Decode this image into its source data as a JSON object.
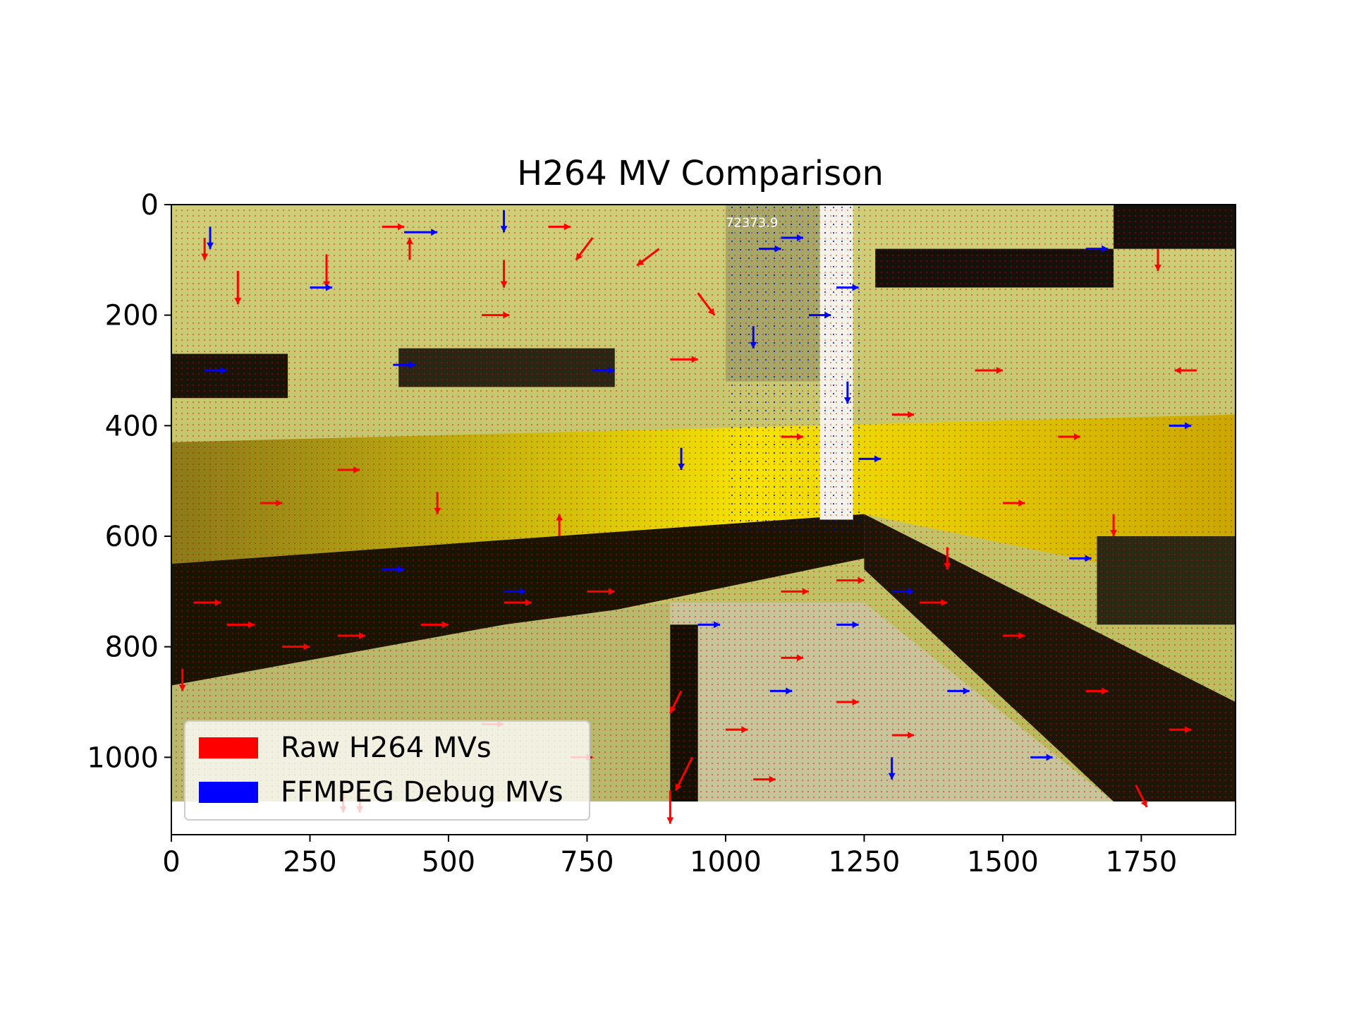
{
  "chart_data": {
    "type": "quiver",
    "title": "H264 MV Comparison",
    "xlabel": "",
    "ylabel": "",
    "xlim": [
      0,
      1920
    ],
    "ylim": [
      1140,
      0
    ],
    "y_inverted": true,
    "x_ticks": [
      0,
      250,
      500,
      750,
      1000,
      1250,
      1500,
      1750
    ],
    "x_tick_labels": [
      "0",
      "250",
      "500",
      "750",
      "1000",
      "1250",
      "1500",
      "1750"
    ],
    "y_ticks": [
      0,
      200,
      400,
      600,
      800,
      1000
    ],
    "y_tick_labels": [
      "0",
      "200",
      "400",
      "600",
      "800",
      "1000"
    ],
    "background_image": {
      "description_type": "video-frame",
      "extent_x": [
        0,
        1920
      ],
      "extent_y": [
        0,
        1080
      ],
      "overlay_text": "72373.9"
    },
    "grid": false,
    "legend_position": "lower-left",
    "series": [
      {
        "name": "Raw H264 MVs",
        "color": "#ff0000",
        "vectors": [
          {
            "x": 60,
            "y": 60,
            "dx": 0,
            "dy": 40
          },
          {
            "x": 120,
            "y": 120,
            "dx": 0,
            "dy": 60
          },
          {
            "x": 280,
            "y": 90,
            "dx": 0,
            "dy": 60
          },
          {
            "x": 380,
            "y": 40,
            "dx": 40,
            "dy": 0
          },
          {
            "x": 430,
            "y": 100,
            "dx": 0,
            "dy": -40
          },
          {
            "x": 560,
            "y": 200,
            "dx": 50,
            "dy": 0
          },
          {
            "x": 600,
            "y": 100,
            "dx": 0,
            "dy": 50
          },
          {
            "x": 680,
            "y": 40,
            "dx": 40,
            "dy": 0
          },
          {
            "x": 760,
            "y": 60,
            "dx": -30,
            "dy": 40
          },
          {
            "x": 880,
            "y": 80,
            "dx": -40,
            "dy": 30
          },
          {
            "x": 950,
            "y": 160,
            "dx": 30,
            "dy": 40
          },
          {
            "x": 900,
            "y": 280,
            "dx": 50,
            "dy": 0
          },
          {
            "x": 1100,
            "y": 420,
            "dx": 40,
            "dy": 0
          },
          {
            "x": 1300,
            "y": 380,
            "dx": 40,
            "dy": 0
          },
          {
            "x": 1450,
            "y": 300,
            "dx": 50,
            "dy": 0
          },
          {
            "x": 1600,
            "y": 420,
            "dx": 40,
            "dy": 0
          },
          {
            "x": 1780,
            "y": 80,
            "dx": 0,
            "dy": 40
          },
          {
            "x": 1850,
            "y": 300,
            "dx": -40,
            "dy": 0
          },
          {
            "x": 300,
            "y": 480,
            "dx": 40,
            "dy": 0
          },
          {
            "x": 480,
            "y": 520,
            "dx": 0,
            "dy": 40
          },
          {
            "x": 160,
            "y": 540,
            "dx": 40,
            "dy": 0
          },
          {
            "x": 700,
            "y": 600,
            "dx": 0,
            "dy": -40
          },
          {
            "x": 40,
            "y": 720,
            "dx": 50,
            "dy": 0
          },
          {
            "x": 100,
            "y": 760,
            "dx": 50,
            "dy": 0
          },
          {
            "x": 200,
            "y": 800,
            "dx": 50,
            "dy": 0
          },
          {
            "x": 300,
            "y": 780,
            "dx": 50,
            "dy": 0
          },
          {
            "x": 450,
            "y": 760,
            "dx": 50,
            "dy": 0
          },
          {
            "x": 600,
            "y": 720,
            "dx": 50,
            "dy": 0
          },
          {
            "x": 750,
            "y": 700,
            "dx": 50,
            "dy": 0
          },
          {
            "x": 20,
            "y": 840,
            "dx": 0,
            "dy": 40
          },
          {
            "x": 920,
            "y": 880,
            "dx": -20,
            "dy": 40
          },
          {
            "x": 940,
            "y": 1000,
            "dx": -30,
            "dy": 60
          },
          {
            "x": 900,
            "y": 1060,
            "dx": 0,
            "dy": 60
          },
          {
            "x": 1100,
            "y": 700,
            "dx": 50,
            "dy": 0
          },
          {
            "x": 1200,
            "y": 680,
            "dx": 50,
            "dy": 0
          },
          {
            "x": 1350,
            "y": 720,
            "dx": 50,
            "dy": 0
          },
          {
            "x": 1500,
            "y": 780,
            "dx": 40,
            "dy": 0
          },
          {
            "x": 1650,
            "y": 880,
            "dx": 40,
            "dy": 0
          },
          {
            "x": 1800,
            "y": 950,
            "dx": 40,
            "dy": 0
          },
          {
            "x": 1100,
            "y": 820,
            "dx": 40,
            "dy": 0
          },
          {
            "x": 1200,
            "y": 900,
            "dx": 40,
            "dy": 0
          },
          {
            "x": 1300,
            "y": 960,
            "dx": 40,
            "dy": 0
          },
          {
            "x": 1000,
            "y": 950,
            "dx": 40,
            "dy": 0
          },
          {
            "x": 1050,
            "y": 1040,
            "dx": 40,
            "dy": 0
          },
          {
            "x": 720,
            "y": 1000,
            "dx": 40,
            "dy": 0
          },
          {
            "x": 560,
            "y": 940,
            "dx": 40,
            "dy": 0
          },
          {
            "x": 1500,
            "y": 540,
            "dx": 40,
            "dy": 0
          },
          {
            "x": 1700,
            "y": 560,
            "dx": 0,
            "dy": 40
          },
          {
            "x": 1400,
            "y": 620,
            "dx": 0,
            "dy": 40
          },
          {
            "x": 340,
            "y": 1060,
            "dx": 0,
            "dy": 40
          },
          {
            "x": 310,
            "y": 1060,
            "dx": 0,
            "dy": 40
          },
          {
            "x": 1740,
            "y": 1050,
            "dx": 20,
            "dy": 40
          }
        ]
      },
      {
        "name": "FFMPEG Debug MVs",
        "color": "#0000ff",
        "vectors": [
          {
            "x": 70,
            "y": 40,
            "dx": 0,
            "dy": 40
          },
          {
            "x": 250,
            "y": 150,
            "dx": 40,
            "dy": 0
          },
          {
            "x": 420,
            "y": 50,
            "dx": 60,
            "dy": 0
          },
          {
            "x": 600,
            "y": 10,
            "dx": 0,
            "dy": 40
          },
          {
            "x": 1060,
            "y": 80,
            "dx": 40,
            "dy": 0
          },
          {
            "x": 1100,
            "y": 60,
            "dx": 40,
            "dy": 0
          },
          {
            "x": 1150,
            "y": 200,
            "dx": 40,
            "dy": 0
          },
          {
            "x": 1200,
            "y": 150,
            "dx": 40,
            "dy": 0
          },
          {
            "x": 1220,
            "y": 320,
            "dx": 0,
            "dy": 40
          },
          {
            "x": 1240,
            "y": 460,
            "dx": 40,
            "dy": 0
          },
          {
            "x": 920,
            "y": 440,
            "dx": 0,
            "dy": 40
          },
          {
            "x": 760,
            "y": 300,
            "dx": 40,
            "dy": 0
          },
          {
            "x": 400,
            "y": 290,
            "dx": 40,
            "dy": 0
          },
          {
            "x": 60,
            "y": 300,
            "dx": 40,
            "dy": 0
          },
          {
            "x": 600,
            "y": 700,
            "dx": 40,
            "dy": 0
          },
          {
            "x": 380,
            "y": 660,
            "dx": 40,
            "dy": 0
          },
          {
            "x": 1200,
            "y": 760,
            "dx": 40,
            "dy": 0
          },
          {
            "x": 1300,
            "y": 700,
            "dx": 40,
            "dy": 0
          },
          {
            "x": 1400,
            "y": 880,
            "dx": 40,
            "dy": 0
          },
          {
            "x": 1800,
            "y": 400,
            "dx": 40,
            "dy": 0
          },
          {
            "x": 1620,
            "y": 640,
            "dx": 40,
            "dy": 0
          },
          {
            "x": 1650,
            "y": 80,
            "dx": 40,
            "dy": 0
          },
          {
            "x": 950,
            "y": 760,
            "dx": 40,
            "dy": 0
          },
          {
            "x": 1080,
            "y": 880,
            "dx": 40,
            "dy": 0
          },
          {
            "x": 1300,
            "y": 1000,
            "dx": 0,
            "dy": 40
          },
          {
            "x": 1550,
            "y": 1000,
            "dx": 40,
            "dy": 0
          },
          {
            "x": 1050,
            "y": 220,
            "dx": 0,
            "dy": 40
          }
        ]
      }
    ]
  }
}
